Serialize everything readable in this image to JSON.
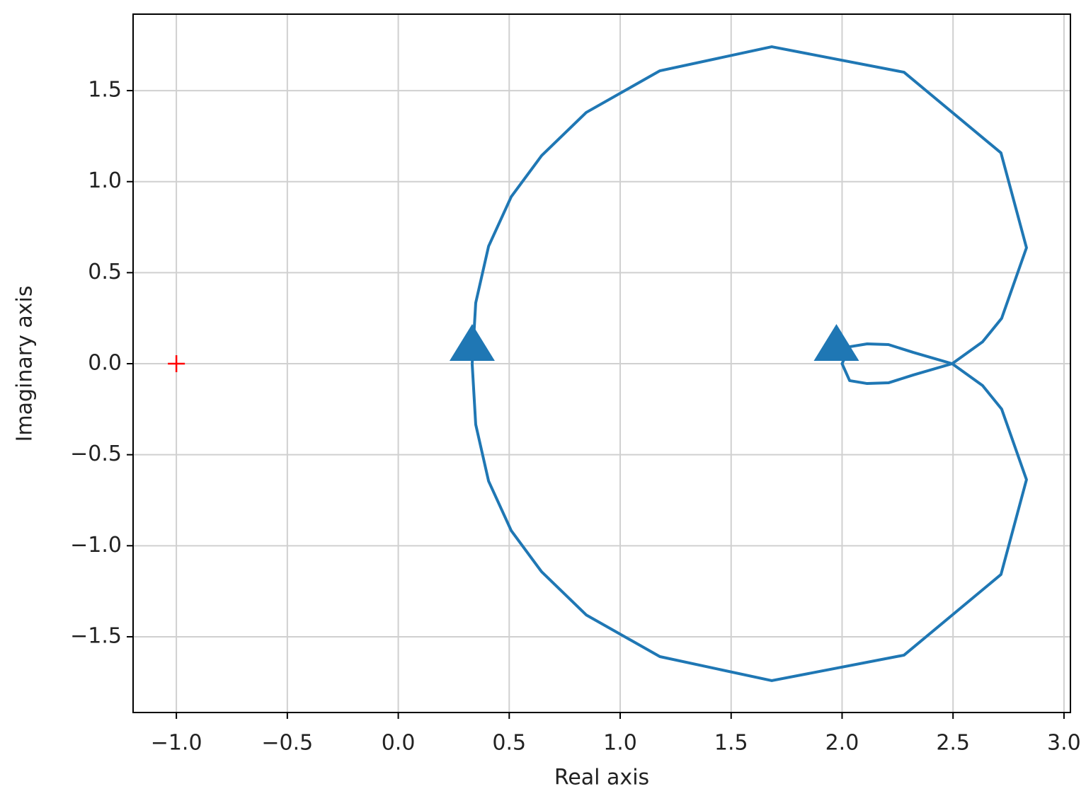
{
  "chart_data": {
    "type": "line",
    "x_label": "Real axis",
    "y_label": "Imaginary axis",
    "x": [
      0.333,
      0.349,
      0.407,
      0.509,
      0.646,
      0.847,
      1.179,
      1.683,
      2.279,
      2.716,
      2.831,
      2.719,
      2.633,
      2.496,
      2.321,
      2.209,
      2.113,
      2.034,
      2.0,
      2.034,
      2.113,
      2.209,
      2.321,
      2.496,
      2.633,
      2.719,
      2.831,
      2.716,
      2.279,
      1.683,
      1.179,
      0.847,
      0.646,
      0.509,
      0.407,
      0.349,
      0.333
    ],
    "values": [
      0,
      0.334,
      0.645,
      0.917,
      1.143,
      1.38,
      1.609,
      1.741,
      1.601,
      1.158,
      0.637,
      0.249,
      0.12,
      0,
      -0.062,
      -0.105,
      -0.109,
      -0.093,
      0,
      0.093,
      0.109,
      0.105,
      0.062,
      0,
      -0.12,
      -0.249,
      -0.637,
      -1.158,
      -1.601,
      -1.741,
      -1.609,
      -1.38,
      -1.143,
      -0.917,
      -0.645,
      -0.334,
      0
    ],
    "color": "#1f77b4",
    "critical_point": {
      "x": -1,
      "y": 0,
      "color": "red"
    },
    "xlim": [
      -1.195,
      3.029
    ],
    "ylim": [
      -1.916,
      1.92
    ],
    "xticks": [
      {
        "value": -1,
        "label": "−1.0"
      },
      {
        "value": -0.5,
        "label": "−0.5"
      },
      {
        "value": 0,
        "label": "0.0"
      },
      0.5,
      {
        "value": 1,
        "label": "1.0"
      },
      1.5,
      {
        "value": 2,
        "label": "2.0"
      },
      2.5,
      {
        "value": 3,
        "label": "3.0"
      }
    ],
    "yticks": [
      {
        "value": -1.5,
        "label": "−1.5"
      },
      {
        "value": -1,
        "label": "−1.0"
      },
      {
        "value": -0.5,
        "label": "−0.5"
      },
      {
        "value": 0,
        "label": "0.0"
      },
      0.5,
      {
        "value": 1,
        "label": "1.0"
      },
      1.5
    ],
    "grid": true
  }
}
